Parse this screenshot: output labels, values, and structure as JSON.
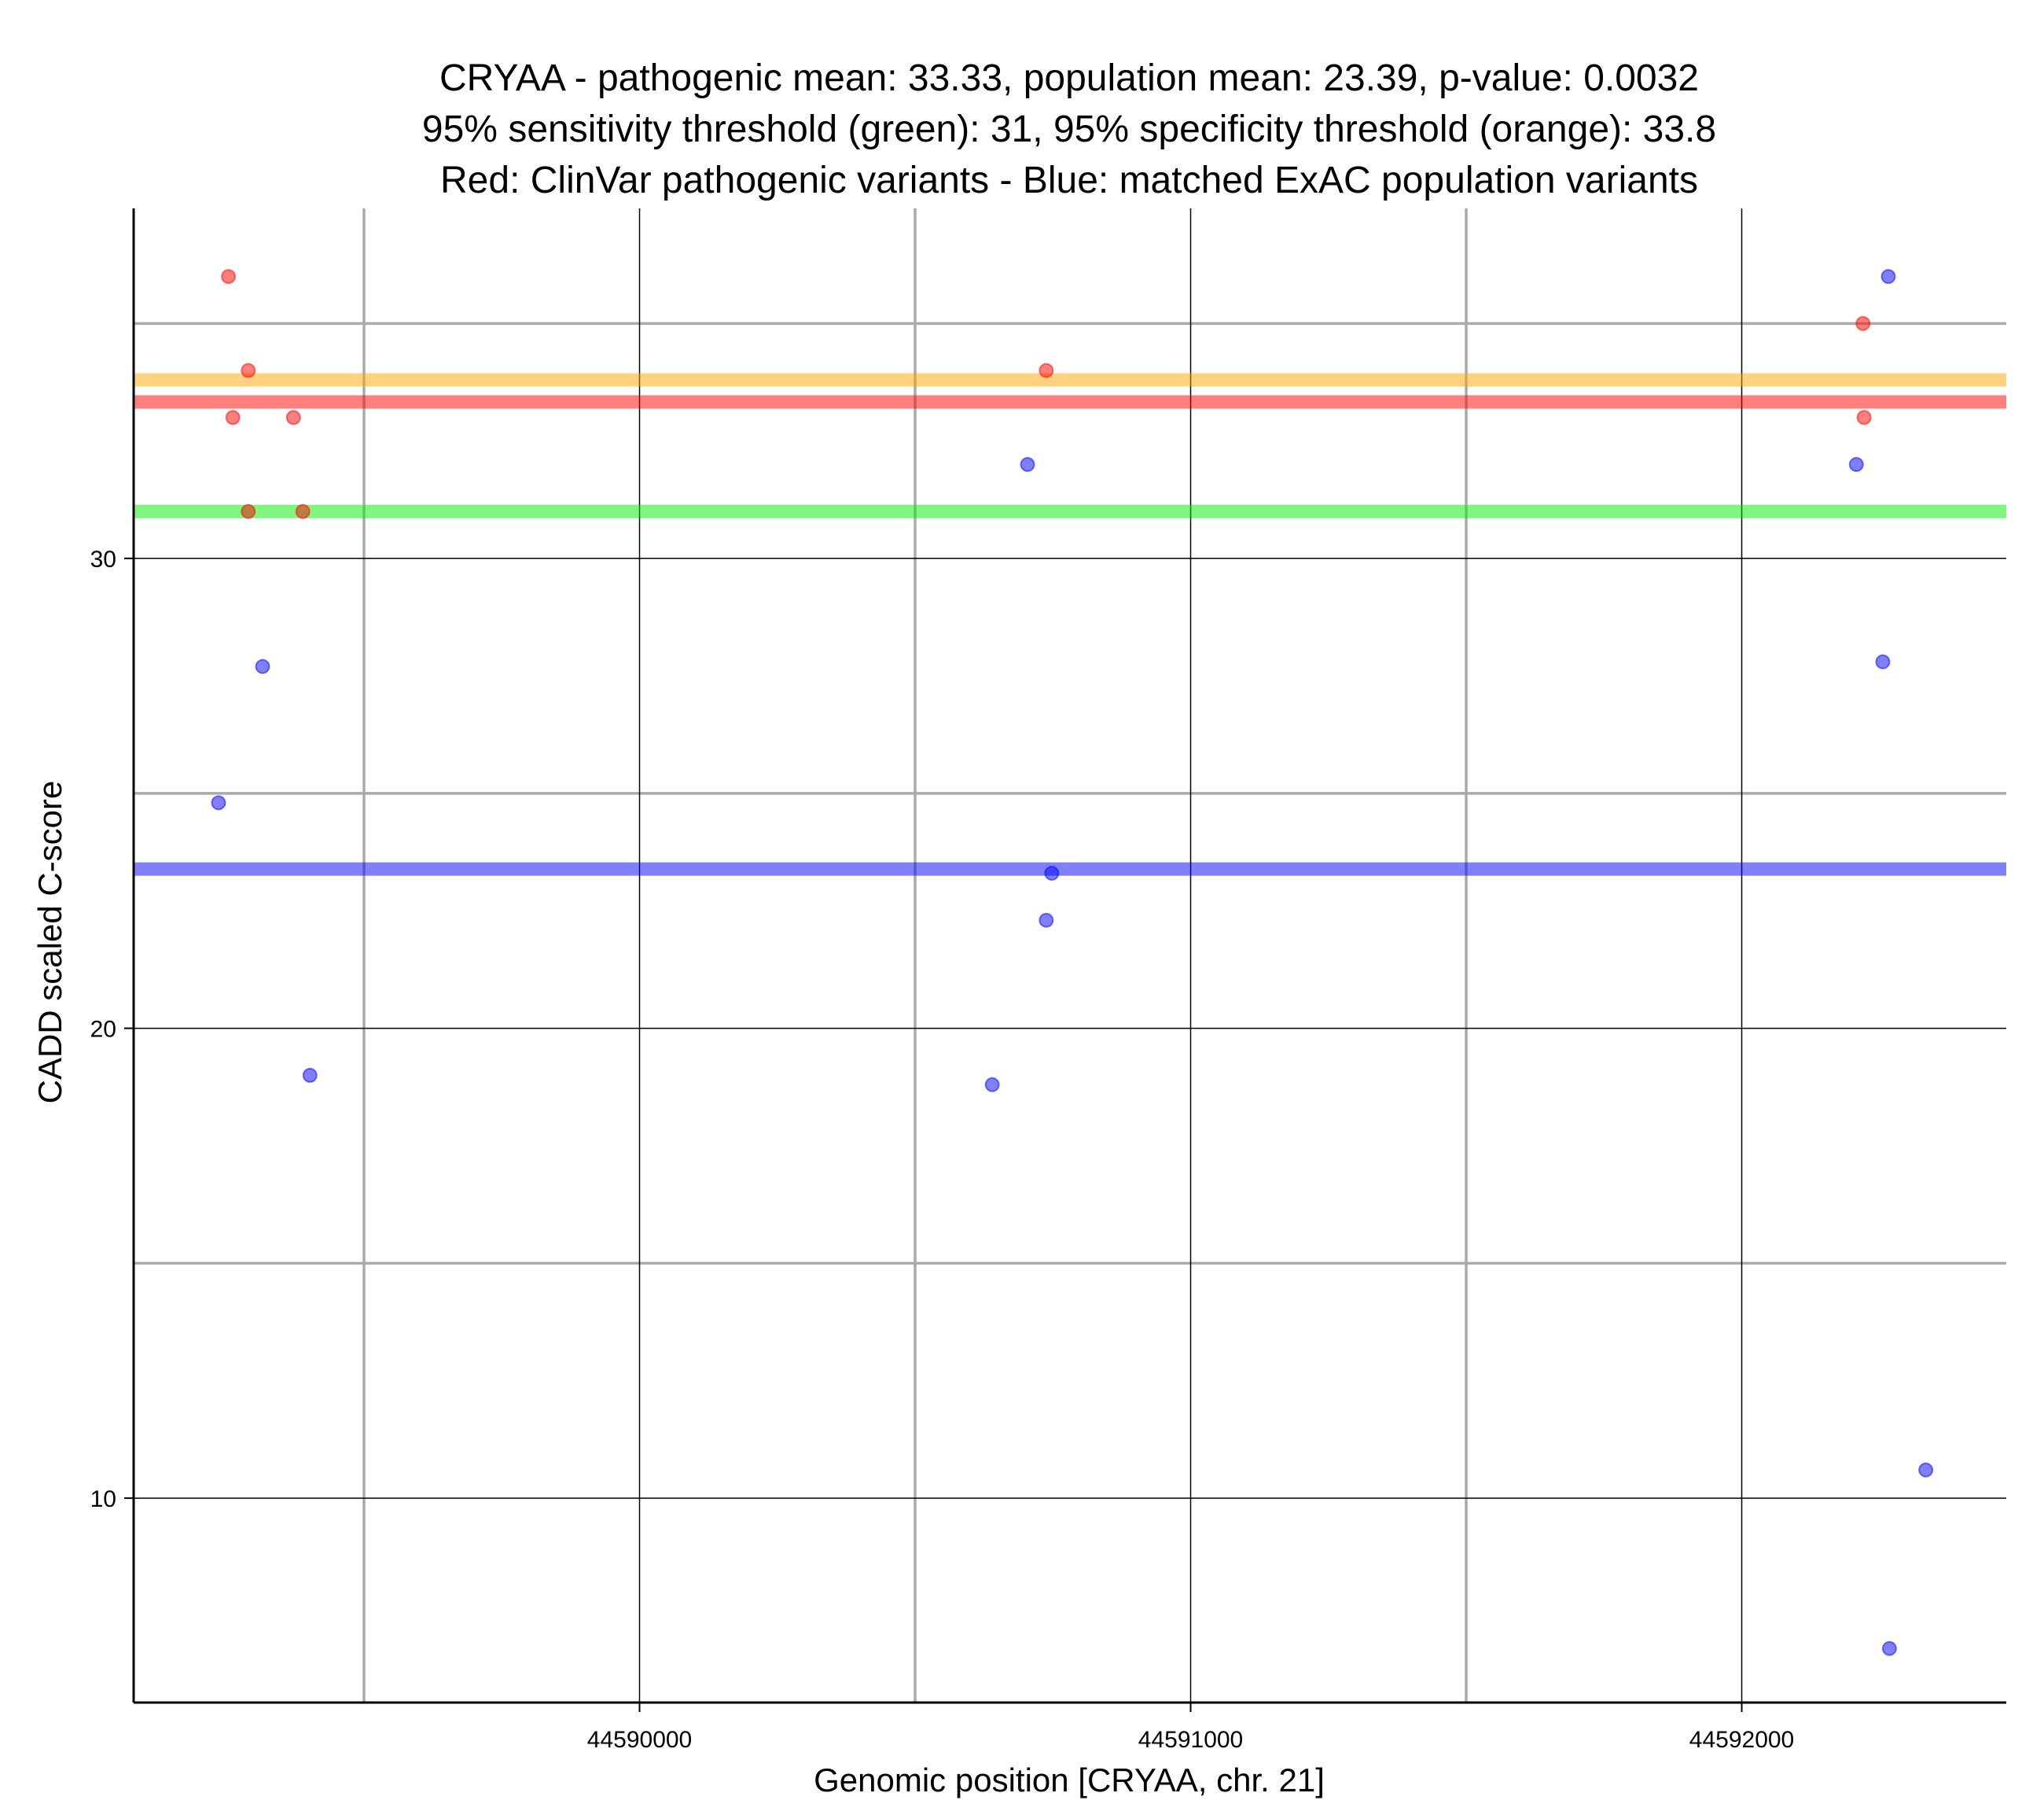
{
  "chart_data": {
    "type": "scatter",
    "title_lines": [
      "CRYAA - pathogenic mean: 33.33, population mean: 23.39, p-value: 0.0032",
      "95% sensitivity threshold (green): 31, 95% specificity threshold (orange): 33.8",
      "Red: ClinVar pathogenic variants - Blue: matched ExAC population variants"
    ],
    "xlabel": "Genomic position [CRYAA, chr. 21]",
    "ylabel": "CADD scaled C-score",
    "xlim": [
      44589082,
      44592480
    ],
    "ylim": [
      5.65,
      37.45
    ],
    "x_ticks": [
      {
        "value": 44590000,
        "label": "44590000"
      },
      {
        "value": 44591000,
        "label": "44591000"
      },
      {
        "value": 44592000,
        "label": "44592000"
      }
    ],
    "x_minor_gridlines": [
      44589500,
      44590500,
      44591500
    ],
    "y_ticks": [
      {
        "value": 10,
        "label": "10"
      },
      {
        "value": 20,
        "label": "20"
      },
      {
        "value": 30,
        "label": "30"
      }
    ],
    "y_minor_gridlines": [
      15,
      25,
      35
    ],
    "grid": true,
    "reference_lines": [
      {
        "value": 33.8,
        "color": "#ffa500",
        "meaning": "specificity threshold"
      },
      {
        "value": 33.33,
        "color": "#ff0000",
        "meaning": "pathogenic mean"
      },
      {
        "value": 31,
        "color": "#00ee00",
        "meaning": "sensitivity threshold"
      },
      {
        "value": 23.39,
        "color": "#0000ff",
        "meaning": "population mean"
      }
    ],
    "series": [
      {
        "color": "#ff0000",
        "points": [
          {
            "x": 44589254,
            "y": 36
          },
          {
            "x": 44589262,
            "y": 33
          },
          {
            "x": 44589290,
            "y": 34
          },
          {
            "x": 44589290,
            "y": 31
          },
          {
            "x": 44589372,
            "y": 33
          },
          {
            "x": 44589389,
            "y": 31
          },
          {
            "x": 44590738,
            "y": 34
          },
          {
            "x": 44592220,
            "y": 35
          },
          {
            "x": 44592222,
            "y": 33
          }
        ]
      },
      {
        "color": "#0000ff",
        "points": [
          {
            "x": 44589236,
            "y": 24.8
          },
          {
            "x": 44589316,
            "y": 27.7
          },
          {
            "x": 44589402,
            "y": 19
          },
          {
            "x": 44590640,
            "y": 18.8
          },
          {
            "x": 44590704,
            "y": 32
          },
          {
            "x": 44590738,
            "y": 22.3
          },
          {
            "x": 44590748,
            "y": 23.3
          },
          {
            "x": 44592208,
            "y": 32
          },
          {
            "x": 44592256,
            "y": 27.8
          },
          {
            "x": 44592266,
            "y": 36
          },
          {
            "x": 44592268,
            "y": 6.8
          },
          {
            "x": 44592334,
            "y": 10.6
          }
        ]
      }
    ]
  }
}
